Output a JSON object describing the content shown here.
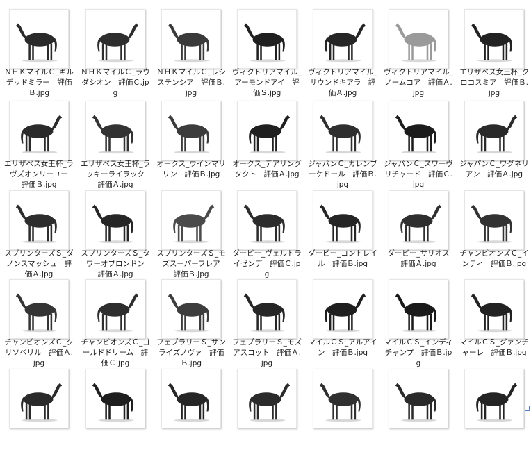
{
  "files": [
    {
      "caption": "ＮＨＫマイルＣ_ギルデッドミラー　評価Ｂ.jpg",
      "shade": "#2a2a2a"
    },
    {
      "caption": "ＮＨＫマイルＣ_ラウダシオン　評価Ｃ.jpg",
      "shade": "#2e2e2e"
    },
    {
      "caption": "ＮＨＫマイルＣ_レシステンシア　評価Ｂ.jpg",
      "shade": "#3a3a3a"
    },
    {
      "caption": "ヴィクトリアマイル_アーモンドアイ　評価Ｓ.jpg",
      "shade": "#1f1f1f"
    },
    {
      "caption": "ヴィクトリアマイル_サウンドキアラ　評価Ａ.jpg",
      "shade": "#262626"
    },
    {
      "caption": "ヴィクトリアマイル_ノームコア　評価Ａ.jpg",
      "shade": "#9a9a9a"
    },
    {
      "caption": "エリザベス女王杯_クロコスミア　評価Ｂ.jpg",
      "shade": "#222222"
    },
    {
      "caption": "エリザベス女王杯_ラヴズオンリーユー　評価Ｂ.jpg",
      "shade": "#2b2b2b"
    },
    {
      "caption": "エリザベス女王杯_ラッキーライラック　評価Ａ.jpg",
      "shade": "#333333"
    },
    {
      "caption": "オークス_ウインマリリン　評価Ｂ.jpg",
      "shade": "#3c3c3c"
    },
    {
      "caption": "オークス_デアリングタクト　評価Ａ.jpg",
      "shade": "#202020"
    },
    {
      "caption": "ジャパンＣ_カレンブーケドール　評価Ｂ.jpg",
      "shade": "#2f2f2f"
    },
    {
      "caption": "ジャパンＣ_スワーヴリチャード　評価Ｃ.jpg",
      "shade": "#1c1c1c"
    },
    {
      "caption": "ジャパンＣ_ワグネリアン　評価Ａ.jpg",
      "shade": "#2a2a2a"
    },
    {
      "caption": "スプリンターズＳ_ダノンスマッシュ　評価Ａ.jpg",
      "shade": "#2d2d2d"
    },
    {
      "caption": "スプリンターズＳ_タワーオブロンドン　評価Ａ.jpg",
      "shade": "#262626"
    },
    {
      "caption": "スプリンターズＳ_モズスーパーフレア　評価Ｂ.jpg",
      "shade": "#4a4a4a"
    },
    {
      "caption": "ダービー_ヴェルトライゼンデ　評価Ｃ.jpg",
      "shade": "#2c2c2c"
    },
    {
      "caption": "ダービー_コントレイル　評価Ｂ.jpg",
      "shade": "#252525"
    },
    {
      "caption": "ダービー_サリオス　評価Ａ.jpg",
      "shade": "#2f2f2f"
    },
    {
      "caption": "チャンピオンズＣ_インティ　評価Ｂ.jpg",
      "shade": "#323232"
    },
    {
      "caption": "チャンピオンズＣ_クリソベリル　評価Ａ.jpg",
      "shade": "#353535"
    },
    {
      "caption": "チャンピオンズＣ_ゴールドドリーム　評価Ｃ.jpg",
      "shade": "#2e2e2e"
    },
    {
      "caption": "フェブラリーＳ_サンライズノヴァ　評価Ｂ.jpg",
      "shade": "#3d3d3d"
    },
    {
      "caption": "フェブラリーＳ_モズアスコット　評価Ａ.jpg",
      "shade": "#262626"
    },
    {
      "caption": "マイルＣＳ_アルアイン　評価Ｂ.jpg",
      "shade": "#1f1f1f"
    },
    {
      "caption": "マイルＣＳ_インディチャンプ　評価Ｂ.jpg",
      "shade": "#1a1a1a"
    },
    {
      "caption": "マイルＣＳ_グァンチャーレ　評価Ｂ.jpg",
      "shade": "#222222"
    },
    {
      "caption": "",
      "shade": "#2a2a2a"
    },
    {
      "caption": "",
      "shade": "#1e1e1e"
    },
    {
      "caption": "",
      "shade": "#262626"
    },
    {
      "caption": "",
      "shade": "#2b2b2b"
    },
    {
      "caption": "",
      "shade": "#303030"
    },
    {
      "caption": "",
      "shade": "#2a2a2a"
    },
    {
      "caption": "",
      "shade": "#242424"
    }
  ]
}
